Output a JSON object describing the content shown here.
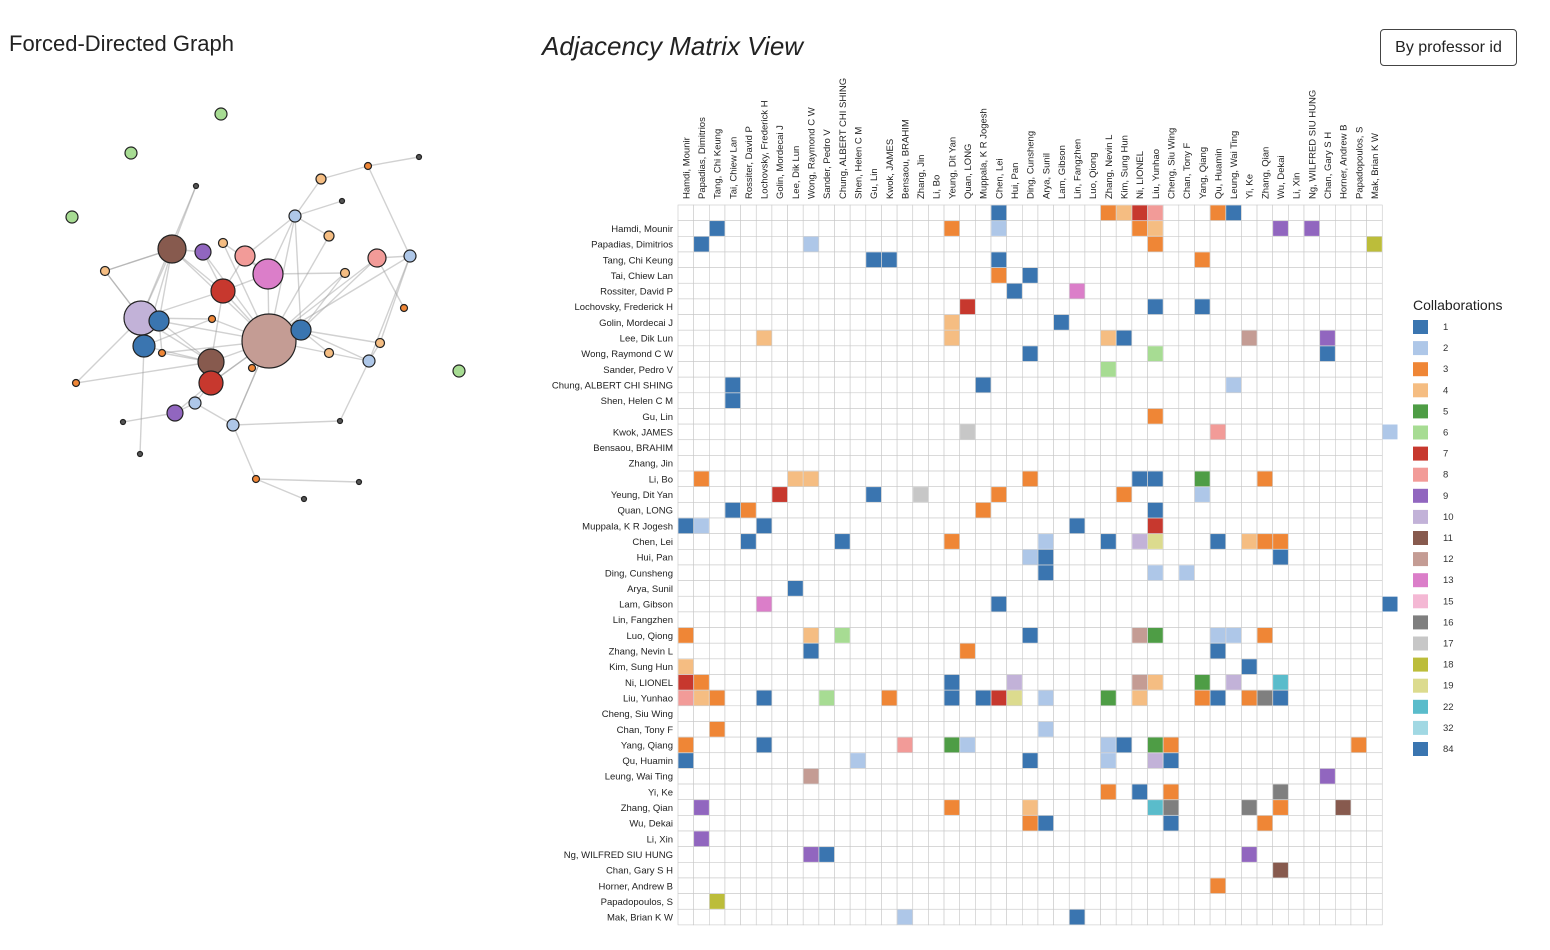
{
  "header": {
    "graph_title": "Forced-Directed Graph",
    "matrix_title": "Adjacency Matrix View",
    "sort_button_label": "By professor id"
  },
  "legend": {
    "title": "Collaborations",
    "items": [
      {
        "label": "1",
        "color": "#3a75b0"
      },
      {
        "label": "2",
        "color": "#aec7e8"
      },
      {
        "label": "3",
        "color": "#ef8636"
      },
      {
        "label": "4",
        "color": "#f5bd82"
      },
      {
        "label": "5",
        "color": "#4e9d45"
      },
      {
        "label": "6",
        "color": "#a7dc93"
      },
      {
        "label": "7",
        "color": "#c7382e"
      },
      {
        "label": "8",
        "color": "#f29b98"
      },
      {
        "label": "9",
        "color": "#9166bf"
      },
      {
        "label": "10",
        "color": "#c2b2d8"
      },
      {
        "label": "11",
        "color": "#875a4e"
      },
      {
        "label": "12",
        "color": "#c49c94"
      },
      {
        "label": "13",
        "color": "#db7ec9"
      },
      {
        "label": "15",
        "color": "#f4b8d4"
      },
      {
        "label": "16",
        "color": "#7f7f7f"
      },
      {
        "label": "17",
        "color": "#c7c7c7"
      },
      {
        "label": "18",
        "color": "#bcbd3a"
      },
      {
        "label": "19",
        "color": "#dcdb8e"
      },
      {
        "label": "22",
        "color": "#5abccb"
      },
      {
        "label": "32",
        "color": "#a1d8e3"
      },
      {
        "label": "84",
        "color": "#3a75b0"
      }
    ]
  },
  "professors": [
    "Hamdi, Mounir",
    "Papadias, Dimitrios",
    "Tang, Chi Keung",
    "Tai, Chiew Lan",
    "Rossiter, David P",
    "Lochovsky, Frederick H",
    "Golin, Mordecai J",
    "Lee, Dik Lun",
    "Wong, Raymond C W",
    "Sander, Pedro V",
    "Chung, ALBERT CHI SHING",
    "Shen, Helen C M",
    "Gu, Lin",
    "Kwok, JAMES",
    "Bensaou, BRAHIM",
    "Zhang, Jin",
    "Li, Bo",
    "Yeung, Dit Yan",
    "Quan, LONG",
    "Muppala, K R Jogesh",
    "Chen, Lei",
    "Hui, Pan",
    "Ding, Cunsheng",
    "Arya, Sunil",
    "Lam, Gibson",
    "Lin, Fangzhen",
    "Luo, Qiong",
    "Zhang, Nevin L",
    "Kim, Sung Hun",
    "Ni, LIONEL",
    "Liu, Yunhao",
    "Cheng, Siu Wing",
    "Chan, Tony F",
    "Yang, Qiang",
    "Qu, Huamin",
    "Leung, Wai Ting",
    "Yi, Ke",
    "Zhang, Qian",
    "Wu, Dekai",
    "Li, Xin",
    "Ng, WILFRED SIU HUNG",
    "Chan, Gary S H",
    "Horner, Andrew B",
    "Papadopoulos, S",
    "Mak, Brian K W"
  ],
  "matrix_cells": [
    [
      0,
      20,
      1
    ],
    [
      0,
      27,
      3
    ],
    [
      0,
      28,
      4
    ],
    [
      0,
      29,
      7
    ],
    [
      0,
      30,
      8
    ],
    [
      0,
      34,
      3
    ],
    [
      0,
      35,
      1
    ],
    [
      1,
      2,
      1
    ],
    [
      1,
      17,
      3
    ],
    [
      1,
      20,
      2
    ],
    [
      1,
      29,
      3
    ],
    [
      1,
      30,
      4
    ],
    [
      1,
      38,
      9
    ],
    [
      1,
      40,
      9
    ],
    [
      2,
      1,
      1
    ],
    [
      2,
      8,
      2
    ],
    [
      2,
      30,
      3
    ],
    [
      2,
      44,
      18
    ],
    [
      3,
      12,
      1
    ],
    [
      3,
      13,
      1
    ],
    [
      3,
      20,
      1
    ],
    [
      3,
      33,
      3
    ],
    [
      4,
      20,
      3
    ],
    [
      4,
      22,
      1
    ],
    [
      5,
      21,
      1
    ],
    [
      5,
      25,
      13
    ],
    [
      6,
      18,
      7
    ],
    [
      6,
      30,
      1
    ],
    [
      6,
      33,
      1
    ],
    [
      7,
      17,
      4
    ],
    [
      7,
      24,
      1
    ],
    [
      8,
      5,
      4
    ],
    [
      8,
      17,
      4
    ],
    [
      8,
      27,
      4
    ],
    [
      8,
      28,
      1
    ],
    [
      8,
      36,
      12
    ],
    [
      8,
      41,
      9
    ],
    [
      9,
      22,
      1
    ],
    [
      9,
      30,
      6
    ],
    [
      9,
      41,
      1
    ],
    [
      10,
      27,
      6
    ],
    [
      11,
      3,
      1
    ],
    [
      11,
      19,
      1
    ],
    [
      11,
      35,
      2
    ],
    [
      12,
      3,
      1
    ],
    [
      13,
      30,
      3
    ],
    [
      14,
      18,
      17
    ],
    [
      14,
      34,
      8
    ],
    [
      14,
      45,
      2
    ],
    [
      17,
      1,
      3
    ],
    [
      17,
      7,
      4
    ],
    [
      17,
      8,
      4
    ],
    [
      17,
      22,
      3
    ],
    [
      17,
      29,
      1
    ],
    [
      17,
      30,
      1
    ],
    [
      17,
      33,
      5
    ],
    [
      17,
      37,
      3
    ],
    [
      18,
      6,
      7
    ],
    [
      18,
      12,
      1
    ],
    [
      18,
      15,
      17
    ],
    [
      18,
      20,
      3
    ],
    [
      18,
      28,
      3
    ],
    [
      18,
      33,
      2
    ],
    [
      19,
      3,
      1
    ],
    [
      19,
      4,
      3
    ],
    [
      19,
      19,
      3
    ],
    [
      19,
      30,
      1
    ],
    [
      20,
      0,
      1
    ],
    [
      20,
      1,
      2
    ],
    [
      20,
      5,
      1
    ],
    [
      20,
      25,
      1
    ],
    [
      20,
      30,
      7
    ],
    [
      21,
      4,
      1
    ],
    [
      21,
      10,
      1
    ],
    [
      21,
      17,
      3
    ],
    [
      21,
      23,
      2
    ],
    [
      21,
      27,
      1
    ],
    [
      21,
      29,
      10
    ],
    [
      21,
      30,
      19
    ],
    [
      21,
      34,
      1
    ],
    [
      21,
      36,
      4
    ],
    [
      21,
      37,
      3
    ],
    [
      21,
      38,
      3
    ],
    [
      22,
      22,
      2
    ],
    [
      22,
      23,
      1
    ],
    [
      22,
      38,
      1
    ],
    [
      23,
      23,
      1
    ],
    [
      23,
      30,
      2
    ],
    [
      23,
      32,
      2
    ],
    [
      24,
      7,
      1
    ],
    [
      25,
      5,
      13
    ],
    [
      25,
      20,
      1
    ],
    [
      25,
      45,
      1
    ],
    [
      27,
      0,
      3
    ],
    [
      27,
      8,
      4
    ],
    [
      27,
      10,
      6
    ],
    [
      27,
      22,
      1
    ],
    [
      27,
      29,
      12
    ],
    [
      27,
      30,
      5
    ],
    [
      27,
      34,
      2
    ],
    [
      27,
      35,
      2
    ],
    [
      27,
      37,
      3
    ],
    [
      28,
      8,
      1
    ],
    [
      28,
      18,
      3
    ],
    [
      28,
      34,
      1
    ],
    [
      29,
      0,
      4
    ],
    [
      29,
      36,
      1
    ],
    [
      30,
      0,
      7
    ],
    [
      30,
      1,
      3
    ],
    [
      30,
      17,
      1
    ],
    [
      30,
      21,
      10
    ],
    [
      30,
      29,
      12
    ],
    [
      30,
      30,
      4
    ],
    [
      30,
      33,
      5
    ],
    [
      30,
      35,
      10
    ],
    [
      30,
      38,
      22
    ],
    [
      31,
      0,
      8
    ],
    [
      31,
      1,
      4
    ],
    [
      31,
      2,
      3
    ],
    [
      31,
      5,
      1
    ],
    [
      31,
      9,
      6
    ],
    [
      31,
      13,
      3
    ],
    [
      31,
      17,
      1
    ],
    [
      31,
      19,
      1
    ],
    [
      31,
      20,
      7
    ],
    [
      31,
      21,
      19
    ],
    [
      31,
      23,
      2
    ],
    [
      31,
      27,
      5
    ],
    [
      31,
      29,
      4
    ],
    [
      31,
      33,
      3
    ],
    [
      31,
      34,
      1
    ],
    [
      31,
      36,
      3
    ],
    [
      31,
      37,
      16
    ],
    [
      31,
      38,
      1
    ],
    [
      33,
      2,
      3
    ],
    [
      33,
      23,
      2
    ],
    [
      34,
      0,
      3
    ],
    [
      34,
      5,
      1
    ],
    [
      34,
      14,
      8
    ],
    [
      34,
      17,
      5
    ],
    [
      34,
      18,
      2
    ],
    [
      34,
      27,
      2
    ],
    [
      34,
      28,
      1
    ],
    [
      34,
      30,
      5
    ],
    [
      34,
      31,
      3
    ],
    [
      34,
      43,
      3
    ],
    [
      35,
      0,
      1
    ],
    [
      35,
      11,
      2
    ],
    [
      35,
      22,
      1
    ],
    [
      35,
      27,
      2
    ],
    [
      35,
      30,
      10
    ],
    [
      35,
      31,
      1
    ],
    [
      36,
      8,
      12
    ],
    [
      36,
      41,
      9
    ],
    [
      37,
      27,
      3
    ],
    [
      37,
      29,
      1
    ],
    [
      37,
      31,
      3
    ],
    [
      37,
      38,
      16
    ],
    [
      38,
      1,
      9
    ],
    [
      38,
      17,
      3
    ],
    [
      38,
      22,
      4
    ],
    [
      38,
      30,
      22
    ],
    [
      38,
      31,
      16
    ],
    [
      38,
      36,
      16
    ],
    [
      38,
      38,
      3
    ],
    [
      38,
      42,
      11
    ],
    [
      39,
      22,
      3
    ],
    [
      39,
      23,
      1
    ],
    [
      39,
      31,
      1
    ],
    [
      39,
      37,
      3
    ],
    [
      40,
      1,
      9
    ],
    [
      41,
      8,
      9
    ],
    [
      41,
      9,
      1
    ],
    [
      41,
      36,
      9
    ],
    [
      42,
      38,
      11
    ],
    [
      43,
      34,
      3
    ],
    [
      44,
      2,
      18
    ],
    [
      45,
      14,
      2
    ],
    [
      45,
      25,
      1
    ]
  ]
}
